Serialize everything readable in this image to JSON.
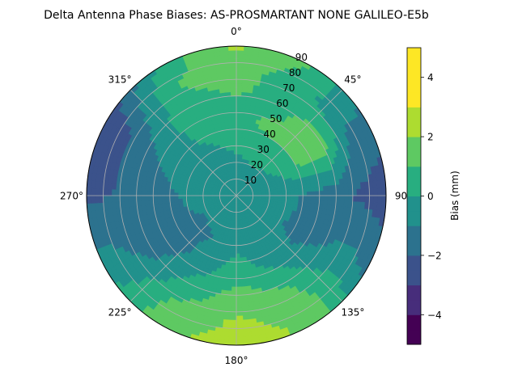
{
  "chart_data": {
    "type": "heatmap",
    "projection": "polar",
    "title": "Delta Antenna Phase Biases: AS-PROSMARTANT  NONE GALILEO-E5b",
    "theta_zero_location": "N",
    "theta_direction": "clockwise",
    "theta_ticks": [
      0,
      45,
      90,
      135,
      180,
      225,
      270,
      315
    ],
    "theta_tick_labels": [
      "0°",
      "45°",
      "90",
      "135°",
      "180°",
      "225°",
      "270°",
      "315°"
    ],
    "r_ticks": [
      10,
      20,
      30,
      40,
      50,
      60,
      70,
      80,
      90
    ],
    "r_tick_labels": [
      "10",
      "20",
      "30",
      "40",
      "50",
      "60",
      "70",
      "80",
      "90"
    ],
    "r_range": [
      0,
      90
    ],
    "grid": true,
    "colorbar": {
      "label": "Bias (mm)",
      "range": [
        -5,
        5
      ],
      "levels": [
        -5,
        -4.5,
        -4,
        -3.5,
        -3,
        -2.5,
        -2,
        -1.5,
        -1,
        -0.5,
        0,
        0.5,
        1,
        1.5,
        2,
        2.5,
        3,
        3.5,
        4,
        4.5,
        5
      ],
      "ticks": [
        -4,
        -2,
        0,
        2,
        4
      ],
      "tick_labels": [
        "−4",
        "−2",
        "0",
        "2",
        "4"
      ],
      "colors": [
        "#440154",
        "#472d7b",
        "#3b528b",
        "#2c728e",
        "#21918c",
        "#28ae80",
        "#5ec962",
        "#addc30",
        "#fde725"
      ],
      "position": "right"
    },
    "field_samples": {
      "r": [
        0,
        15,
        30,
        45,
        60,
        75,
        90
      ],
      "theta": [
        0,
        30,
        60,
        90,
        120,
        150,
        180,
        210,
        240,
        270,
        300,
        330
      ],
      "bias": [
        [
          -0.3,
          -0.3,
          -0.3,
          -0.3,
          -0.3,
          -0.3,
          -0.3,
          -0.3,
          -0.3,
          -0.3,
          -0.3,
          -0.3
        ],
        [
          -0.5,
          -0.2,
          -0.5,
          -0.8,
          -0.5,
          -0.3,
          -0.6,
          -0.9,
          -0.8,
          -0.4,
          -0.2,
          -0.3
        ],
        [
          0.2,
          0.5,
          0.3,
          -0.7,
          -0.9,
          -0.6,
          -0.3,
          -1.0,
          -1.2,
          -0.8,
          -0.4,
          -0.2
        ],
        [
          0.8,
          1.2,
          1.5,
          -1.2,
          -1.4,
          -0.4,
          0.5,
          -0.7,
          -1.6,
          -1.4,
          -0.6,
          0.3
        ],
        [
          1.0,
          0.8,
          1.6,
          -1.7,
          -1.0,
          0.8,
          1.4,
          0.2,
          -1.5,
          -1.8,
          -1.2,
          0.7
        ],
        [
          1.4,
          0.5,
          -1.0,
          -2.2,
          -0.6,
          1.6,
          2.1,
          1.2,
          -0.8,
          -2.0,
          -2.2,
          1.0
        ],
        [
          2.2,
          1.0,
          -1.4,
          -2.6,
          -1.2,
          1.8,
          2.6,
          1.6,
          -0.4,
          -2.2,
          -3.0,
          0.4
        ]
      ]
    }
  }
}
